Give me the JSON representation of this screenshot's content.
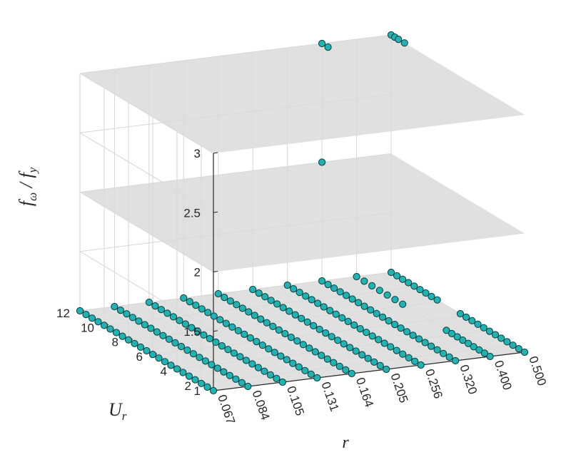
{
  "chart_data": {
    "type": "scatter",
    "projection": "3d",
    "title": "",
    "xlabel": "r",
    "ylabel": "U_r",
    "zlabel": "f_ω / f_y",
    "x_ticks": [
      "0.067",
      "0.084",
      "0.105",
      "0.131",
      "0.164",
      "0.205",
      "0.256",
      "0.320",
      "0.400",
      "0.500"
    ],
    "y_ticks": [
      "2",
      "4",
      "6",
      "8",
      "10",
      "12"
    ],
    "z_ticks": [
      "1",
      "1.5",
      "2",
      "2.5",
      "3"
    ],
    "zlim": [
      1,
      3
    ],
    "ylim": [
      1,
      12
    ],
    "grid": true,
    "reference_planes_z": [
      1,
      2,
      3
    ],
    "colors": {
      "marker_fill": "#1fb3b3",
      "marker_edge": "#0b3a3a",
      "plane": "#d9d9d9",
      "grid": "#d6d6d6",
      "axis": "#262626"
    },
    "series": [
      {
        "z": 1,
        "groups": [
          {
            "r": 0.067,
            "Ur_range": [
              1,
              12
            ],
            "count": 23
          },
          {
            "r": 0.084,
            "Ur_range": [
              1,
              12
            ],
            "count": 23
          },
          {
            "r": 0.105,
            "Ur_range": [
              1,
              12
            ],
            "count": 23
          },
          {
            "r": 0.131,
            "Ur_range": [
              1,
              12
            ],
            "count": 23
          },
          {
            "r": 0.164,
            "Ur_range": [
              1,
              12
            ],
            "count": 23
          },
          {
            "r": 0.205,
            "Ur_range": [
              1,
              12
            ],
            "count": 23
          },
          {
            "r": 0.256,
            "Ur_range": [
              1,
              12
            ],
            "count": 23
          },
          {
            "r": 0.32,
            "Ur_range": [
              1,
              12
            ],
            "count": 23
          },
          {
            "r": 0.4,
            "Ur_range": [
              1,
              4.6
            ],
            "count": 9
          },
          {
            "r": 0.4,
            "Ur_range": [
              8.2,
              12
            ],
            "count": 7
          },
          {
            "r": 0.5,
            "Ur_range": [
              1,
              6.3
            ],
            "count": 12
          },
          {
            "r": 0.5,
            "Ur_range": [
              8.2,
              12
            ],
            "count": 9
          }
        ]
      },
      {
        "z": 2,
        "points": [
          {
            "r": 0.32,
            "Ur": 12
          }
        ]
      },
      {
        "z": 3,
        "points": [
          {
            "r": 0.32,
            "Ur": 12.0
          },
          {
            "r": 0.32,
            "Ur": 11.5
          },
          {
            "r": 0.5,
            "Ur": 12.0
          },
          {
            "r": 0.5,
            "Ur": 11.7
          },
          {
            "r": 0.5,
            "Ur": 11.4
          },
          {
            "r": 0.5,
            "Ur": 10.9
          }
        ]
      }
    ]
  }
}
